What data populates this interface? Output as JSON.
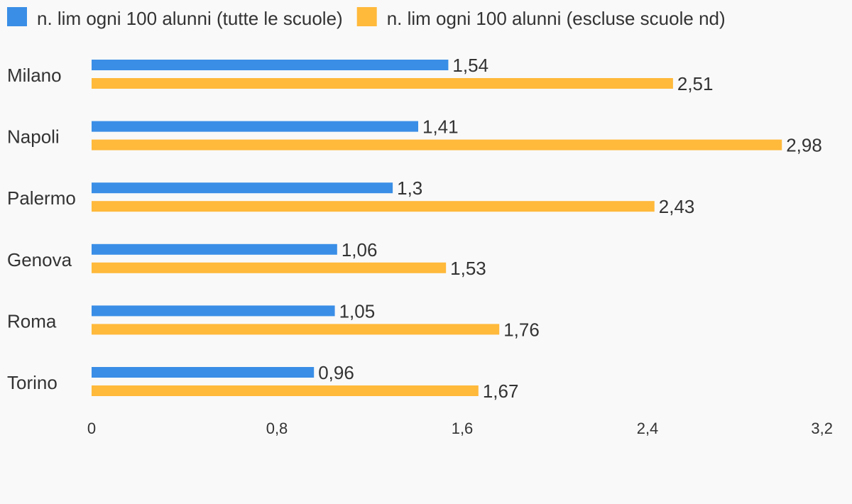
{
  "chart_data": {
    "type": "bar",
    "orientation": "horizontal",
    "categories": [
      "Milano",
      "Napoli",
      "Palermo",
      "Genova",
      "Roma",
      "Torino"
    ],
    "series": [
      {
        "name": "n. lim ogni 100 alunni (tutte le scuole)",
        "color": "#3a8ee6",
        "values": [
          1.54,
          1.41,
          1.3,
          1.06,
          1.05,
          0.96
        ],
        "labels": [
          "1,54",
          "1,41",
          "1,3",
          "1,06",
          "1,05",
          "0,96"
        ]
      },
      {
        "name": "n. lim ogni 100 alunni (escluse scuole nd)",
        "color": "#ffb93b",
        "values": [
          2.51,
          2.98,
          2.43,
          1.53,
          1.76,
          1.67
        ],
        "labels": [
          "2,51",
          "2,98",
          "2,43",
          "1,53",
          "1,76",
          "1,67"
        ]
      }
    ],
    "xlim": [
      0,
      3.2
    ],
    "ticks": [
      0,
      0.8,
      1.6,
      2.4,
      3.2
    ],
    "tick_labels": [
      "0",
      "0,8",
      "1,6",
      "2,4",
      "3,2"
    ],
    "grid": false,
    "legend_position": "top-left"
  }
}
